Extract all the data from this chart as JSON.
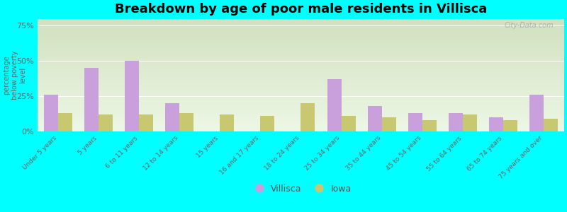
{
  "title": "Breakdown by age of poor male residents in Villisca",
  "ylabel": "percentage\nbelow poverty\nlevel",
  "categories": [
    "Under 5 years",
    "5 years",
    "6 to 11 years",
    "12 to 14 years",
    "15 years",
    "16 and 17 years",
    "18 to 24 years",
    "25 to 34 years",
    "35 to 44 years",
    "45 to 54 years",
    "55 to 64 years",
    "65 to 74 years",
    "75 years and over"
  ],
  "villisca": [
    26,
    45,
    50,
    20,
    0,
    0,
    0,
    37,
    18,
    13,
    13,
    10,
    26
  ],
  "iowa": [
    13,
    12,
    12,
    13,
    12,
    11,
    20,
    11,
    10,
    8,
    12,
    8,
    9
  ],
  "villisca_color": "#c9a0dc",
  "iowa_color": "#c8c870",
  "bg_color": "#00ffff",
  "ylim": [
    0,
    80
  ],
  "yticks": [
    0,
    25,
    50,
    75
  ],
  "ytick_labels": [
    "0%",
    "25%",
    "50%",
    "75%"
  ],
  "title_fontsize": 13,
  "bar_width": 0.35,
  "plot_bg_top": "#d0dfc0",
  "plot_bg_bottom": "#eef5e8"
}
